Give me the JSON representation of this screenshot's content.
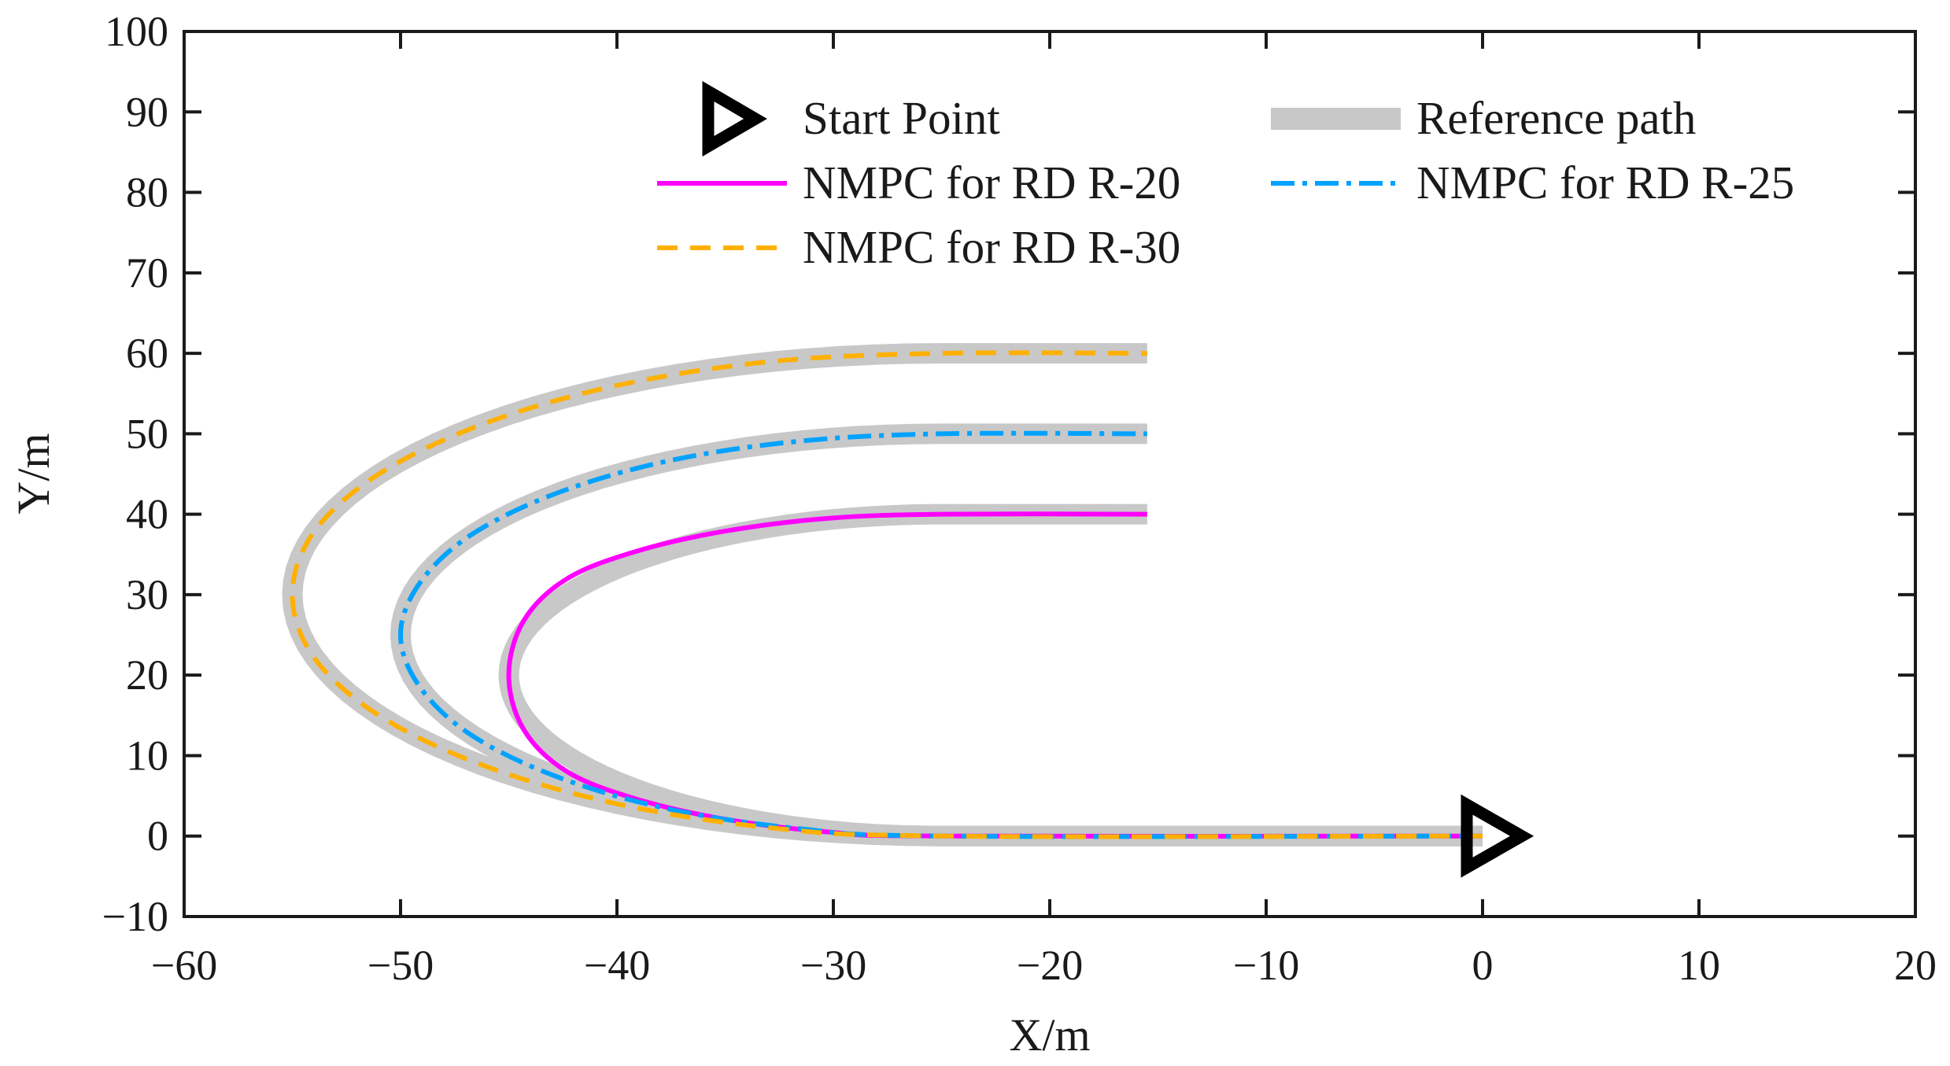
{
  "chart_data": {
    "type": "line",
    "title": "",
    "xlabel": "X/m",
    "ylabel": "Y/m",
    "xlim": [
      -60,
      20
    ],
    "ylim": [
      -10,
      100
    ],
    "xticks": [
      -60,
      -50,
      -40,
      -30,
      -20,
      -10,
      0,
      10,
      20
    ],
    "yticks": [
      -10,
      0,
      10,
      20,
      30,
      40,
      50,
      60,
      70,
      80,
      90,
      100
    ],
    "xtick_labels": [
      "−60",
      "−50",
      "−40",
      "−30",
      "−20",
      "−10",
      "0",
      "10",
      "20"
    ],
    "ytick_labels": [
      "−10",
      "0",
      "10",
      "20",
      "30",
      "40",
      "50",
      "60",
      "70",
      "80",
      "90",
      "100"
    ],
    "grid": false,
    "legend_position": "top",
    "start_point": {
      "label": "Start Point",
      "x": 0,
      "y": 0,
      "marker": "right-triangle",
      "color": "#000000"
    },
    "reference": {
      "name": "Reference path",
      "color": "#c8c8c8",
      "style": "solid-thick",
      "radii": [
        20,
        25,
        30
      ]
    },
    "series": [
      {
        "name": "NMPC for RD R-20",
        "radius": 20,
        "color": "#ff00ff",
        "style": "solid",
        "x": [
          0,
          -25,
          -30.2,
          -35.0,
          -39.1,
          -42.3,
          -44.3,
          -45.0,
          -44.3,
          -42.3,
          -39.1,
          -35.0,
          -30.2,
          -25,
          -15.5
        ],
        "y": [
          0,
          0,
          0.5,
          2.1,
          4.6,
          8.0,
          13.2,
          20,
          26.8,
          32.0,
          35.4,
          37.9,
          39.5,
          40,
          40
        ]
      },
      {
        "name": "NMPC for RD R-25",
        "radius": 25,
        "color": "#00a2ff",
        "style": "dash-dot",
        "x": [
          0,
          -25,
          -31.5,
          -37.5,
          -42.7,
          -46.7,
          -49.1,
          -50.0,
          -49.1,
          -46.7,
          -42.7,
          -37.5,
          -31.5,
          -25,
          -15.5
        ],
        "y": [
          0,
          0,
          0.9,
          3.3,
          7.3,
          12.5,
          18.5,
          25,
          31.5,
          37.5,
          42.7,
          46.7,
          49.1,
          50,
          50
        ]
      },
      {
        "name": "NMPC for RD R-30",
        "radius": 30,
        "color": "#ffb000",
        "style": "dashed",
        "x": [
          0,
          -25,
          -32.8,
          -40.0,
          -46.2,
          -51.0,
          -54.0,
          -55.0,
          -54.0,
          -51.0,
          -46.2,
          -40.0,
          -32.8,
          -25,
          -15.5
        ],
        "y": [
          0,
          0,
          1.0,
          4.0,
          8.8,
          15.0,
          22.2,
          30,
          37.8,
          45.0,
          51.2,
          56.0,
          59.0,
          60,
          60
        ]
      }
    ]
  }
}
